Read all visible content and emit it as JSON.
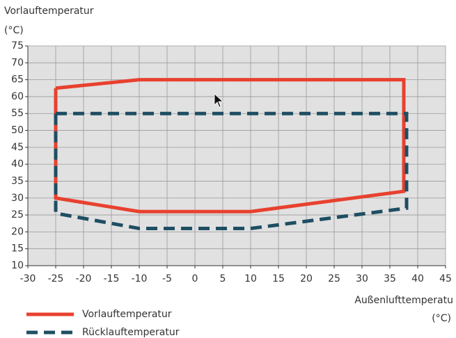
{
  "chart_data": {
    "type": "line",
    "ylabel": [
      "Vorlauftemperatur",
      "(°C)"
    ],
    "xlabel": [
      "Außenlufttemperatu",
      "(°C)"
    ],
    "xlim": [
      -30,
      45
    ],
    "xticks": [
      -30,
      -25,
      -20,
      -15,
      -10,
      -5,
      0,
      5,
      10,
      15,
      20,
      25,
      30,
      35,
      40,
      45
    ],
    "ylim": [
      10,
      75
    ],
    "yticks": [
      10,
      15,
      20,
      25,
      30,
      35,
      40,
      45,
      50,
      55,
      60,
      65,
      70,
      75
    ],
    "grid": true,
    "legend": "bottom-left",
    "series": [
      {
        "name": "Vorlauftemperatur",
        "color": "#e8412f",
        "dashed": false,
        "x": [
          -25,
          -10,
          37.5,
          37.5,
          10,
          -10,
          -25,
          -25
        ],
        "values": [
          62.5,
          65,
          65,
          32,
          26,
          26,
          30,
          62.5
        ]
      },
      {
        "name": "Rücklauftemperatur",
        "color": "#1f4e63",
        "dashed": true,
        "x": [
          -25,
          38,
          38,
          10,
          -10,
          -25,
          -25
        ],
        "values": [
          55,
          55,
          27,
          21,
          21,
          25.5,
          55
        ]
      }
    ]
  }
}
